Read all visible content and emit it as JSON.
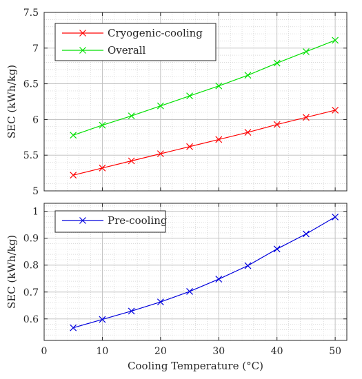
{
  "chart_data": [
    {
      "type": "line",
      "xlabel": "",
      "ylabel": "SEC (kWh/kg)",
      "xlim": [
        0,
        52
      ],
      "ylim": [
        5,
        7.5
      ],
      "x_ticks": [
        0,
        10,
        20,
        30,
        40,
        50
      ],
      "y_ticks": [
        5,
        5.5,
        6,
        6.5,
        7,
        7.5
      ],
      "y_tick_labels": [
        "5",
        "5.5",
        "6",
        "6.5",
        "7",
        "7.5"
      ],
      "show_x_tick_labels": false,
      "grid": "major-and-minor",
      "legend_position": "top-left",
      "marker": "x",
      "x": [
        5,
        10,
        15,
        20,
        25,
        30,
        35,
        40,
        45,
        50
      ],
      "series": [
        {
          "name": "Cryogenic-cooling",
          "color": "#ff0000",
          "values": [
            5.22,
            5.32,
            5.42,
            5.52,
            5.62,
            5.72,
            5.82,
            5.93,
            6.03,
            6.13
          ]
        },
        {
          "name": "Overall",
          "color": "#00e000",
          "values": [
            5.78,
            5.92,
            6.05,
            6.19,
            6.33,
            6.47,
            6.62,
            6.79,
            6.95,
            7.11
          ]
        }
      ]
    },
    {
      "type": "line",
      "xlabel": "Cooling Temperature (°C)",
      "ylabel": "SEC (kWh/kg)",
      "xlim": [
        0,
        52
      ],
      "ylim": [
        0.52,
        1.03
      ],
      "x_ticks": [
        0,
        10,
        20,
        30,
        40,
        50
      ],
      "x_tick_labels": [
        "0",
        "10",
        "20",
        "30",
        "40",
        "50"
      ],
      "y_ticks": [
        0.6,
        0.7,
        0.8,
        0.9,
        1.0
      ],
      "y_tick_labels": [
        "0.6",
        "0.7",
        "0.8",
        "0.9",
        "1"
      ],
      "show_x_tick_labels": true,
      "grid": "major-and-minor",
      "legend_position": "top-left",
      "marker": "x",
      "x": [
        5,
        10,
        15,
        20,
        25,
        30,
        35,
        40,
        45,
        50
      ],
      "series": [
        {
          "name": "Pre-cooling",
          "color": "#0000dd",
          "values": [
            0.567,
            0.598,
            0.629,
            0.663,
            0.702,
            0.748,
            0.798,
            0.86,
            0.916,
            0.979
          ]
        }
      ]
    }
  ]
}
